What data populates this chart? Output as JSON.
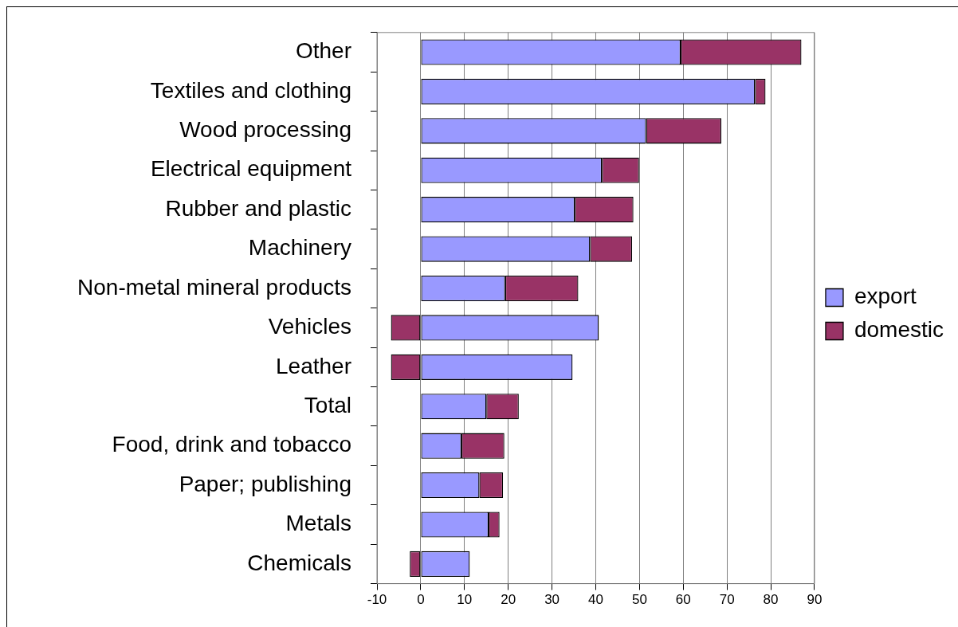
{
  "chart_data": {
    "type": "bar",
    "orientation": "horizontal",
    "stacked": true,
    "categories": [
      "Other",
      "Textiles and clothing",
      "Wood processing",
      "Electrical equipment",
      "Rubber and plastic",
      "Machinery",
      "Non-metal mineral products",
      "Vehicles",
      "Leather",
      "Total",
      "Food, drink and tobacco",
      "Paper; publishing",
      "Metals",
      "Chemicals"
    ],
    "series": [
      {
        "name": "export",
        "color": "#9999ff",
        "values": [
          59.4,
          76.4,
          51.5,
          41.4,
          35.2,
          38.7,
          19.3,
          40.7,
          34.7,
          15.0,
          9.3,
          13.4,
          15.5,
          11.2
        ]
      },
      {
        "name": "domestic",
        "color": "#993366",
        "values": [
          27.6,
          2.4,
          17.2,
          8.5,
          13.4,
          9.6,
          16.7,
          -6.8,
          -6.8,
          7.4,
          9.8,
          5.4,
          2.5,
          -2.5
        ]
      }
    ],
    "xlim": [
      -10,
      90
    ],
    "xticks": [
      -10,
      0,
      10,
      20,
      30,
      40,
      50,
      60,
      70,
      80,
      90
    ],
    "grid": "x",
    "legend": "right"
  }
}
